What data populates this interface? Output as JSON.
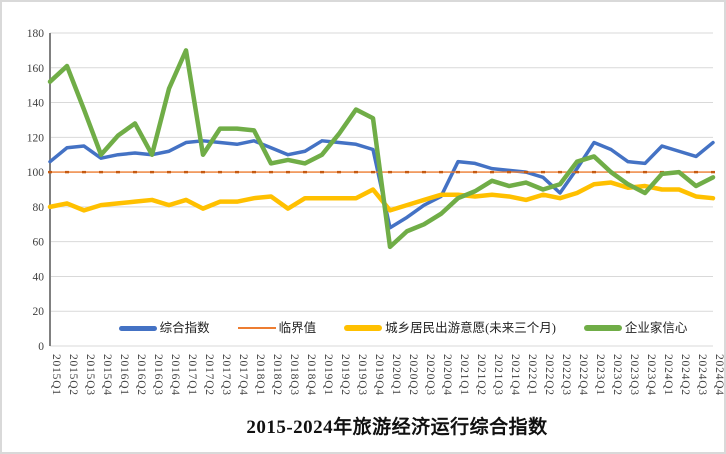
{
  "chart_data": {
    "type": "line",
    "title": "2015-2024年旅游经济运行综合指数",
    "xlabel": "",
    "ylabel": "",
    "ylim": [
      0,
      180
    ],
    "ytick_interval": 20,
    "y_ticks": [
      0,
      20,
      40,
      60,
      80,
      100,
      120,
      140,
      160,
      180
    ],
    "grid": true,
    "legend_position": "bottom-inside",
    "categories": [
      "2015Q1",
      "2015Q2",
      "2015Q3",
      "2015Q4",
      "2016Q1",
      "2016Q2",
      "2016Q3",
      "2016Q4",
      "2017Q1",
      "2017Q2",
      "2017Q3",
      "2017Q4",
      "2018Q1",
      "2018Q2",
      "2018Q3",
      "2018Q4",
      "2019Q1",
      "2019Q2",
      "2019Q3",
      "2019Q4",
      "2020Q1",
      "2020Q2",
      "2020Q3",
      "2020Q4",
      "2021Q1",
      "2021Q2",
      "2021Q3",
      "2021Q4",
      "2022Q1",
      "2022Q2",
      "2022Q3",
      "2022Q4",
      "2023Q1",
      "2023Q2",
      "2023Q3",
      "2023Q4",
      "2024Q1",
      "2024Q2",
      "2024Q3",
      "2024Q4"
    ],
    "series": [
      {
        "key": "composite-index",
        "name": "综合指数",
        "color": "#4472C4",
        "values": [
          106,
          114,
          115,
          108,
          110,
          111,
          110,
          112,
          117,
          118,
          117,
          116,
          118,
          114,
          110,
          112,
          118,
          117,
          116,
          113,
          68,
          74,
          81,
          86,
          106,
          105,
          102,
          101,
          100,
          97,
          88,
          102,
          117,
          113,
          106,
          105,
          115,
          112,
          109,
          117
        ]
      },
      {
        "key": "threshold",
        "name": "临界值",
        "color": "#ED7D31",
        "marker_color": "#C55A11",
        "values": [
          100,
          100,
          100,
          100,
          100,
          100,
          100,
          100,
          100,
          100,
          100,
          100,
          100,
          100,
          100,
          100,
          100,
          100,
          100,
          100,
          100,
          100,
          100,
          100,
          100,
          100,
          100,
          100,
          100,
          100,
          100,
          100,
          100,
          100,
          100,
          100,
          100,
          100,
          100,
          100
        ]
      },
      {
        "key": "residents-travel-willingness",
        "name": "城乡居民出游意愿(未来三个月)",
        "color": "#FFC000",
        "values": [
          80,
          82,
          78,
          81,
          82,
          83,
          84,
          81,
          84,
          79,
          83,
          83,
          85,
          86,
          79,
          85,
          85,
          85,
          85,
          90,
          78,
          81,
          84,
          87,
          87,
          86,
          87,
          86,
          84,
          87,
          85,
          88,
          93,
          94,
          91,
          92,
          90,
          90,
          86,
          85
        ]
      },
      {
        "key": "entrepreneur-confidence",
        "name": "企业家信心",
        "color": "#70AD47",
        "values": [
          152,
          161,
          136,
          110,
          121,
          128,
          110,
          148,
          170,
          110,
          125,
          125,
          124,
          105,
          107,
          105,
          110,
          122,
          136,
          131,
          57,
          66,
          70,
          76,
          85,
          89,
          95,
          92,
          94,
          90,
          93,
          106,
          109,
          100,
          93,
          88,
          99,
          100,
          92,
          97
        ]
      }
    ]
  }
}
